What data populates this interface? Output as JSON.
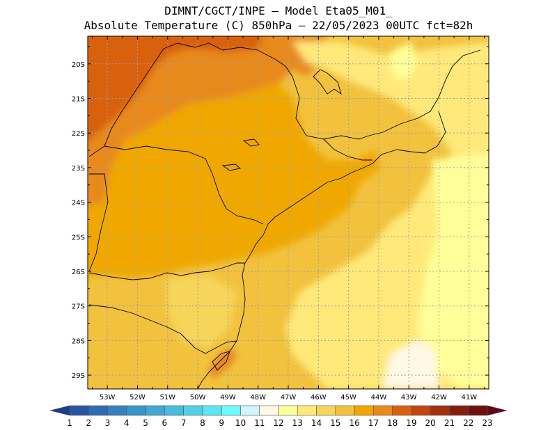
{
  "header": {
    "line1": "DIMNT/CGCT/INPE –  Model Eta05_M01_",
    "line2": "Absolute Temperature (C) 850hPa –  22/05/2023 00UTC fct=82h"
  },
  "map": {
    "lat_labels": [
      "20S",
      "21S",
      "22S",
      "23S",
      "24S",
      "25S",
      "26S",
      "27S",
      "28S",
      "29S"
    ],
    "lon_labels": [
      "53W",
      "52W",
      "51W",
      "50W",
      "49W",
      "48W",
      "47W",
      "46W",
      "45W",
      "44W",
      "43W",
      "42W",
      "41W"
    ],
    "lat_range": [
      -29.4,
      -19.2
    ],
    "lon_range": [
      -53.65,
      -40.35
    ]
  },
  "colorbar": {
    "labels": [
      "1",
      "2",
      "3",
      "4",
      "5",
      "6",
      "7",
      "8",
      "9",
      "10",
      "11",
      "12",
      "13",
      "14",
      "15",
      "16",
      "17",
      "18",
      "19",
      "20",
      "21",
      "22",
      "23"
    ],
    "colors": [
      "#1e3c8c",
      "#2a55a3",
      "#2f6bb2",
      "#3581bf",
      "#3a95c8",
      "#41a8d2",
      "#48bcdc",
      "#52d0e6",
      "#5fe6f0",
      "#6ffcff",
      "#cff5ff",
      "#fff8e6",
      "#ffff99",
      "#ffe97a",
      "#f7d55a",
      "#f2c23e",
      "#f0a800",
      "#e8891a",
      "#d96010",
      "#c0450e",
      "#a33010",
      "#861e10",
      "#6e1010",
      "#600818"
    ]
  },
  "legend_levels": {
    "orange_dark": "#d9600e",
    "orange": "#e8891a",
    "gold": "#f0a800",
    "yellow_dark": "#f2c23e",
    "yellow": "#f7d55a",
    "yellow_light": "#ffe97a",
    "pale": "#ffff99",
    "cream": "#fff8e6"
  }
}
